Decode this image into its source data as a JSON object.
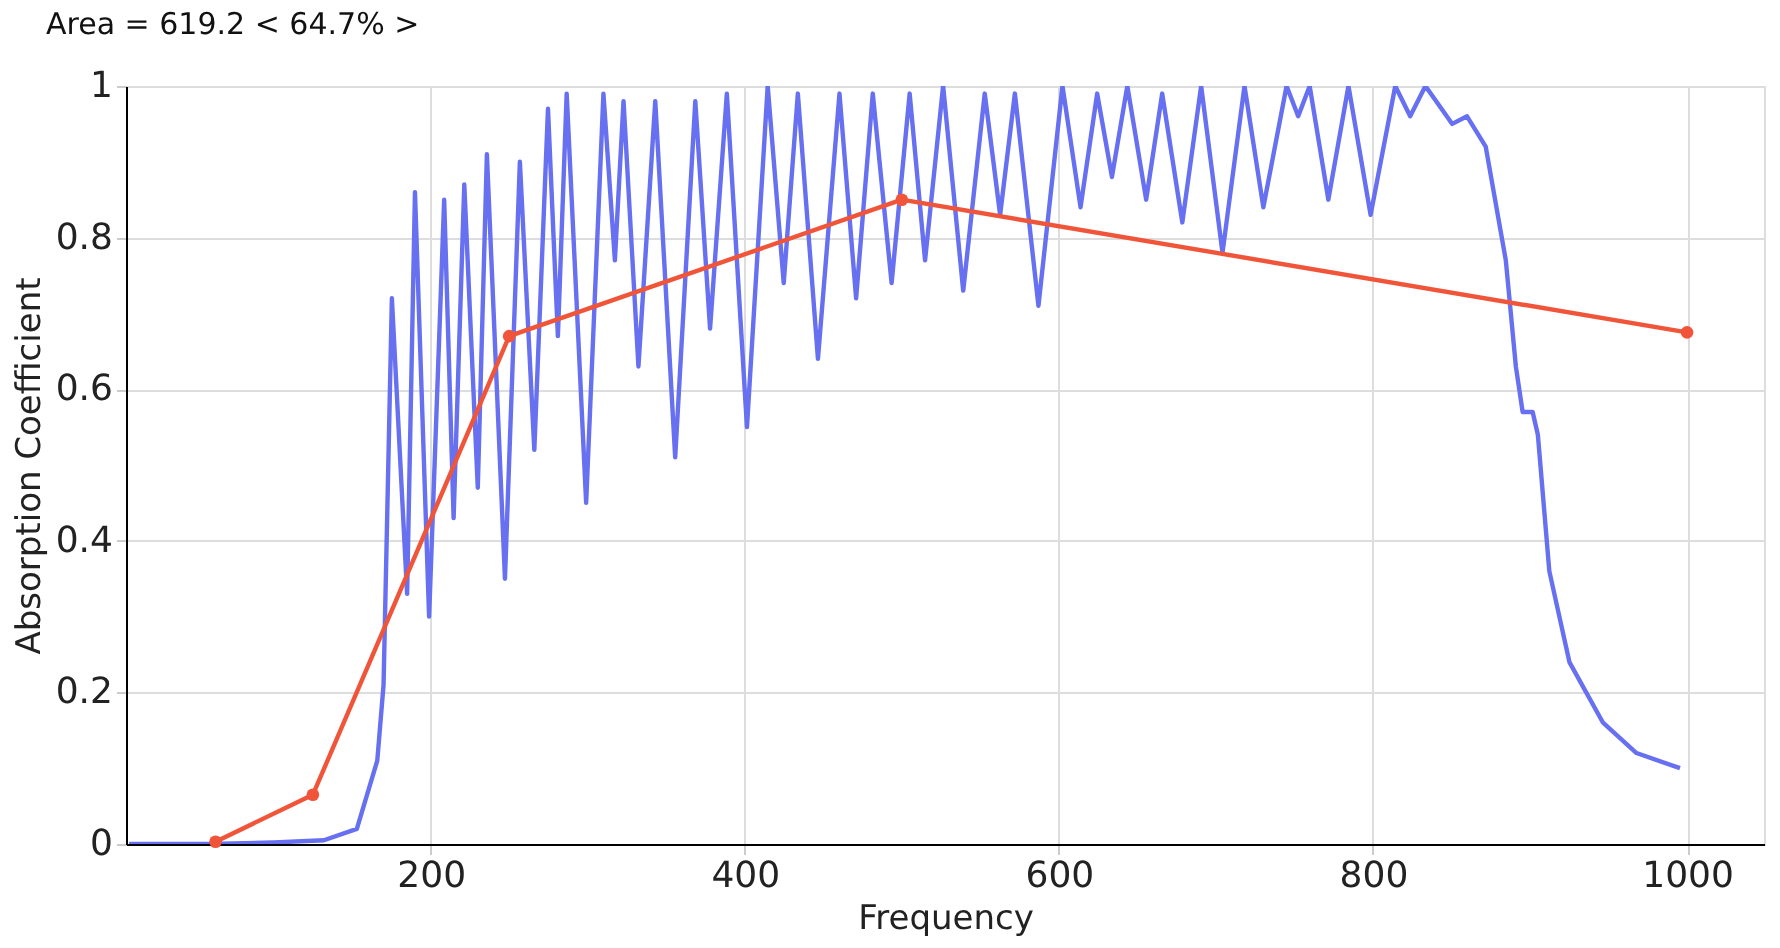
{
  "chart_data": {
    "type": "line",
    "title": "Area = 619.2  < 64.7% >",
    "xlabel": "Frequency",
    "ylabel": "Absorption Coefficient",
    "xlim": [
      6,
      1049
    ],
    "xticks": [
      200,
      400,
      600,
      800,
      1000
    ],
    "ylim": [
      0,
      1
    ],
    "yticks": [
      0,
      0.2,
      0.4,
      0.6,
      0.8,
      1
    ],
    "grid": true,
    "line_style": "solid",
    "series": [
      {
        "color": "#6670f0",
        "marker": "none",
        "x": [
          8,
          60,
          100,
          132,
          153,
          166,
          170,
          175.3,
          185,
          190,
          199,
          208.6,
          214.6,
          221.4,
          230,
          235.8,
          247.3,
          256.8,
          266,
          274.7,
          281,
          286.6,
          299,
          310,
          317.3,
          322.8,
          332.3,
          343,
          355.7,
          368.5,
          377.9,
          388.6,
          401.4,
          414.6,
          424.8,
          433.8,
          446.6,
          460.3,
          470.9,
          481.5,
          493.5,
          505,
          514.8,
          526.3,
          539.1,
          552.8,
          562.6,
          572,
          587,
          602.3,
          613.8,
          624.4,
          633.8,
          643.6,
          655.6,
          665.8,
          678.6,
          690.6,
          704.2,
          718.2,
          730.2,
          745,
          752.4,
          759.7,
          771.6,
          784.4,
          798.5,
          814.2,
          823.7,
          833.4,
          850.5,
          859.9,
          871.8,
          884.6,
          891,
          895.3,
          901.7,
          905,
          912.3,
          925.1,
          946.5,
          967.8,
          995.5
        ],
        "values": [
          0,
          0,
          0.002,
          0.005,
          0.02,
          0.11,
          0.21,
          0.72,
          0.33,
          0.86,
          0.3,
          0.85,
          0.43,
          0.87,
          0.47,
          0.91,
          0.35,
          0.9,
          0.52,
          0.97,
          0.67,
          0.99,
          0.45,
          0.99,
          0.77,
          0.98,
          0.63,
          0.98,
          0.51,
          0.98,
          0.68,
          0.99,
          0.55,
          1.0,
          0.74,
          0.99,
          0.64,
          0.99,
          0.72,
          0.99,
          0.74,
          0.99,
          0.77,
          1.0,
          0.73,
          0.99,
          0.83,
          0.99,
          0.71,
          1.0,
          0.84,
          0.99,
          0.88,
          1.0,
          0.85,
          0.99,
          0.82,
          1.0,
          0.78,
          1.0,
          0.84,
          1.0,
          0.96,
          1.0,
          0.85,
          1.0,
          0.83,
          1.0,
          0.96,
          1.0,
          0.95,
          0.96,
          0.92,
          0.77,
          0.63,
          0.57,
          0.57,
          0.54,
          0.36,
          0.24,
          0.16,
          0.12,
          0.1
        ]
      },
      {
        "color": "#f0553a",
        "marker": "circle",
        "x": [
          63,
          125,
          250,
          500,
          1000
        ],
        "values": [
          0.003,
          0.065,
          0.67,
          0.85,
          0.675
        ]
      }
    ]
  }
}
